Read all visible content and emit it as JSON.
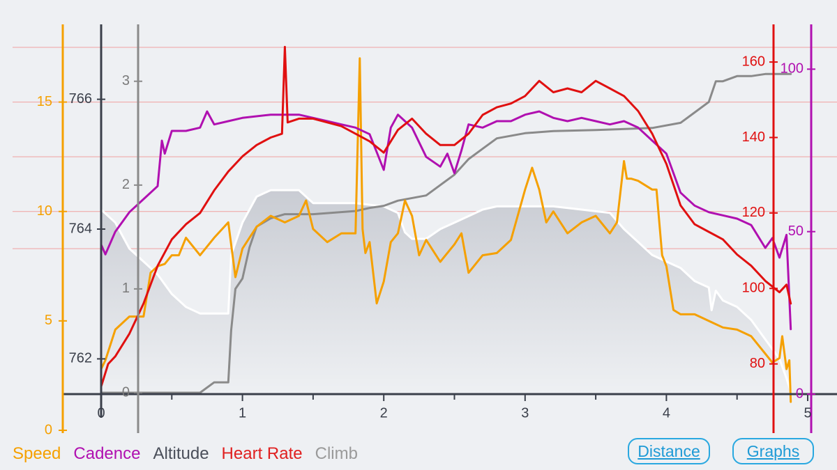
{
  "legend": {
    "speed": "Speed",
    "cadence": "Cadence",
    "altitude": "Altitude",
    "heart_rate": "Heart Rate",
    "climb": "Climb"
  },
  "buttons": {
    "distance": "Distance",
    "graphs": "Graphs"
  },
  "colors": {
    "speed": "#f5a000",
    "cadence": "#b010b0",
    "altitude_line": "#ffffff",
    "altitude_fill": "#d2d4da",
    "heart_rate": "#e01010",
    "climb": "#8a8a8a",
    "axis": "#3a3f4a",
    "gridline": "#f0a0a0",
    "button": "#1e9ad6"
  },
  "chart_data": {
    "type": "line",
    "x_axis": {
      "ticks": [
        "0",
        "1",
        "2",
        "3",
        "4",
        "5"
      ],
      "range": [
        0,
        5
      ]
    },
    "axes": {
      "speed": {
        "ticks": [
          "0",
          "5",
          "10",
          "15"
        ],
        "range": [
          0,
          17.5
        ]
      },
      "altitude": {
        "ticks": [
          "762",
          "764",
          "766"
        ],
        "range": [
          761.5,
          766.5
        ]
      },
      "climb": {
        "ticks": [
          "0",
          "1",
          "2",
          "3"
        ],
        "range": [
          0,
          3.3
        ]
      },
      "heart_rate": {
        "ticks": [
          "80",
          "100",
          "120",
          "140",
          "160"
        ],
        "range": [
          72,
          165
        ]
      },
      "cadence": {
        "ticks": [
          "0",
          "50",
          "100"
        ],
        "range": [
          0,
          105
        ]
      }
    },
    "series": [
      {
        "name": "Altitude",
        "axis": "altitude",
        "x": [
          0,
          0.1,
          0.2,
          0.3,
          0.4,
          0.5,
          0.6,
          0.7,
          0.9,
          0.92,
          1.0,
          1.1,
          1.2,
          1.4,
          1.5,
          1.6,
          1.8,
          2.0,
          2.1,
          2.15,
          2.2,
          2.3,
          2.4,
          2.5,
          2.6,
          2.7,
          2.8,
          3.0,
          3.2,
          3.4,
          3.6,
          3.7,
          3.8,
          3.9,
          4.0,
          4.1,
          4.2,
          4.3,
          4.32,
          4.35,
          4.4,
          4.5,
          4.6,
          4.7,
          4.8,
          4.85,
          4.88
        ],
        "y": [
          764.3,
          764.1,
          763.7,
          763.5,
          763.3,
          763.0,
          762.8,
          762.7,
          762.7,
          763.6,
          764.1,
          764.5,
          764.6,
          764.6,
          764.4,
          764.4,
          764.4,
          764.35,
          764.25,
          763.95,
          763.85,
          763.85,
          764.0,
          764.1,
          764.2,
          764.3,
          764.35,
          764.35,
          764.35,
          764.3,
          764.25,
          764.0,
          763.8,
          763.6,
          763.5,
          763.4,
          763.2,
          763.1,
          762.75,
          763.05,
          762.9,
          762.8,
          762.6,
          762.3,
          762.0,
          761.7,
          761.5
        ]
      },
      {
        "name": "Climb",
        "axis": "climb",
        "x": [
          0,
          0.3,
          0.7,
          0.8,
          0.9,
          0.92,
          0.95,
          1.0,
          1.05,
          1.1,
          1.2,
          1.3,
          1.5,
          1.8,
          1.9,
          2.0,
          2.1,
          2.3,
          2.4,
          2.5,
          2.6,
          2.7,
          2.8,
          3.0,
          3.2,
          3.5,
          3.9,
          4.1,
          4.2,
          4.3,
          4.35,
          4.4,
          4.5,
          4.6,
          4.7,
          4.88
        ],
        "y": [
          0.0,
          0.0,
          0.0,
          0.1,
          0.1,
          0.6,
          1.0,
          1.1,
          1.4,
          1.6,
          1.68,
          1.72,
          1.72,
          1.75,
          1.78,
          1.8,
          1.85,
          1.9,
          2.0,
          2.1,
          2.25,
          2.35,
          2.45,
          2.5,
          2.52,
          2.53,
          2.55,
          2.6,
          2.7,
          2.8,
          3.0,
          3.0,
          3.05,
          3.05,
          3.07,
          3.07
        ]
      },
      {
        "name": "Speed",
        "axis": "speed",
        "x": [
          0,
          0.03,
          0.1,
          0.2,
          0.3,
          0.35,
          0.4,
          0.45,
          0.5,
          0.55,
          0.6,
          0.7,
          0.8,
          0.9,
          0.95,
          1.0,
          1.1,
          1.2,
          1.3,
          1.4,
          1.45,
          1.5,
          1.6,
          1.7,
          1.8,
          1.83,
          1.85,
          1.87,
          1.9,
          1.95,
          2.0,
          2.05,
          2.1,
          2.15,
          2.2,
          2.25,
          2.3,
          2.4,
          2.5,
          2.55,
          2.6,
          2.7,
          2.8,
          2.9,
          3.0,
          3.05,
          3.1,
          3.15,
          3.2,
          3.3,
          3.4,
          3.5,
          3.6,
          3.65,
          3.7,
          3.72,
          3.75,
          3.8,
          3.9,
          3.93,
          3.97,
          4.0,
          4.05,
          4.1,
          4.2,
          4.3,
          4.4,
          4.5,
          4.6,
          4.7,
          4.75,
          4.8,
          4.82,
          4.85,
          4.87,
          4.88
        ],
        "y": [
          2.8,
          3.2,
          4.6,
          5.2,
          5.2,
          7.2,
          7.5,
          7.6,
          8.0,
          8.0,
          8.8,
          8.0,
          8.8,
          9.5,
          7.0,
          8.3,
          9.3,
          9.8,
          9.5,
          9.8,
          10.5,
          9.2,
          8.6,
          9.0,
          9.0,
          17.0,
          9.2,
          8.1,
          8.6,
          5.8,
          6.8,
          8.6,
          9.0,
          10.5,
          9.8,
          8.0,
          8.7,
          7.7,
          8.5,
          9.0,
          7.2,
          8.0,
          8.1,
          8.7,
          11.0,
          12.0,
          11.0,
          9.5,
          10.0,
          9.0,
          9.5,
          9.8,
          9.0,
          9.5,
          12.3,
          11.5,
          11.5,
          11.4,
          11.0,
          11.0,
          8.0,
          7.5,
          5.5,
          5.3,
          5.3,
          5.0,
          4.7,
          4.6,
          4.3,
          3.5,
          3.1,
          3.3,
          4.3,
          2.8,
          3.2,
          1.3
        ]
      },
      {
        "name": "Heart Rate",
        "axis": "heart_rate",
        "x": [
          0,
          0.05,
          0.1,
          0.2,
          0.3,
          0.4,
          0.5,
          0.6,
          0.7,
          0.8,
          0.9,
          1.0,
          1.1,
          1.2,
          1.28,
          1.3,
          1.32,
          1.4,
          1.5,
          1.6,
          1.7,
          1.8,
          1.9,
          2.0,
          2.1,
          2.2,
          2.3,
          2.4,
          2.5,
          2.6,
          2.7,
          2.8,
          2.9,
          3.0,
          3.1,
          3.2,
          3.3,
          3.4,
          3.5,
          3.6,
          3.7,
          3.8,
          3.9,
          4.0,
          4.1,
          4.2,
          4.3,
          4.4,
          4.5,
          4.6,
          4.7,
          4.8,
          4.85,
          4.88
        ],
        "y": [
          74,
          80,
          82,
          88,
          96,
          106,
          113,
          117,
          120,
          126,
          131,
          135,
          138,
          140,
          141,
          164,
          144,
          145,
          145,
          144,
          143,
          141,
          139,
          136,
          142,
          145,
          141,
          138,
          138,
          141,
          146,
          148,
          149,
          151,
          155,
          152,
          153,
          152,
          155,
          153,
          151,
          147,
          141,
          133,
          122,
          117,
          115,
          113,
          109,
          106,
          102,
          99,
          101,
          96
        ]
      },
      {
        "name": "Cadence",
        "axis": "cadence",
        "x": [
          0,
          0.03,
          0.1,
          0.2,
          0.3,
          0.4,
          0.43,
          0.45,
          0.5,
          0.6,
          0.7,
          0.75,
          0.8,
          0.9,
          1.0,
          1.2,
          1.3,
          1.4,
          1.5,
          1.6,
          1.7,
          1.8,
          1.9,
          2.0,
          2.05,
          2.1,
          2.15,
          2.2,
          2.3,
          2.4,
          2.45,
          2.5,
          2.55,
          2.6,
          2.7,
          2.8,
          2.9,
          3.0,
          3.1,
          3.2,
          3.3,
          3.4,
          3.5,
          3.6,
          3.7,
          3.8,
          3.9,
          4.0,
          4.1,
          4.2,
          4.3,
          4.4,
          4.5,
          4.6,
          4.7,
          4.75,
          4.8,
          4.85,
          4.88
        ],
        "y": [
          46,
          43,
          50,
          56,
          60,
          64,
          78,
          74,
          81,
          81,
          82,
          87,
          83,
          84,
          85,
          86,
          86,
          86,
          85,
          84,
          83,
          82,
          80,
          69,
          82,
          86,
          84,
          82,
          73,
          70,
          74,
          68,
          75,
          83,
          82,
          84,
          84,
          86,
          87,
          85,
          84,
          85,
          84,
          83,
          84,
          82,
          78,
          74,
          62,
          58,
          56,
          55,
          54,
          52,
          45,
          48,
          42,
          49,
          20
        ]
      }
    ]
  }
}
